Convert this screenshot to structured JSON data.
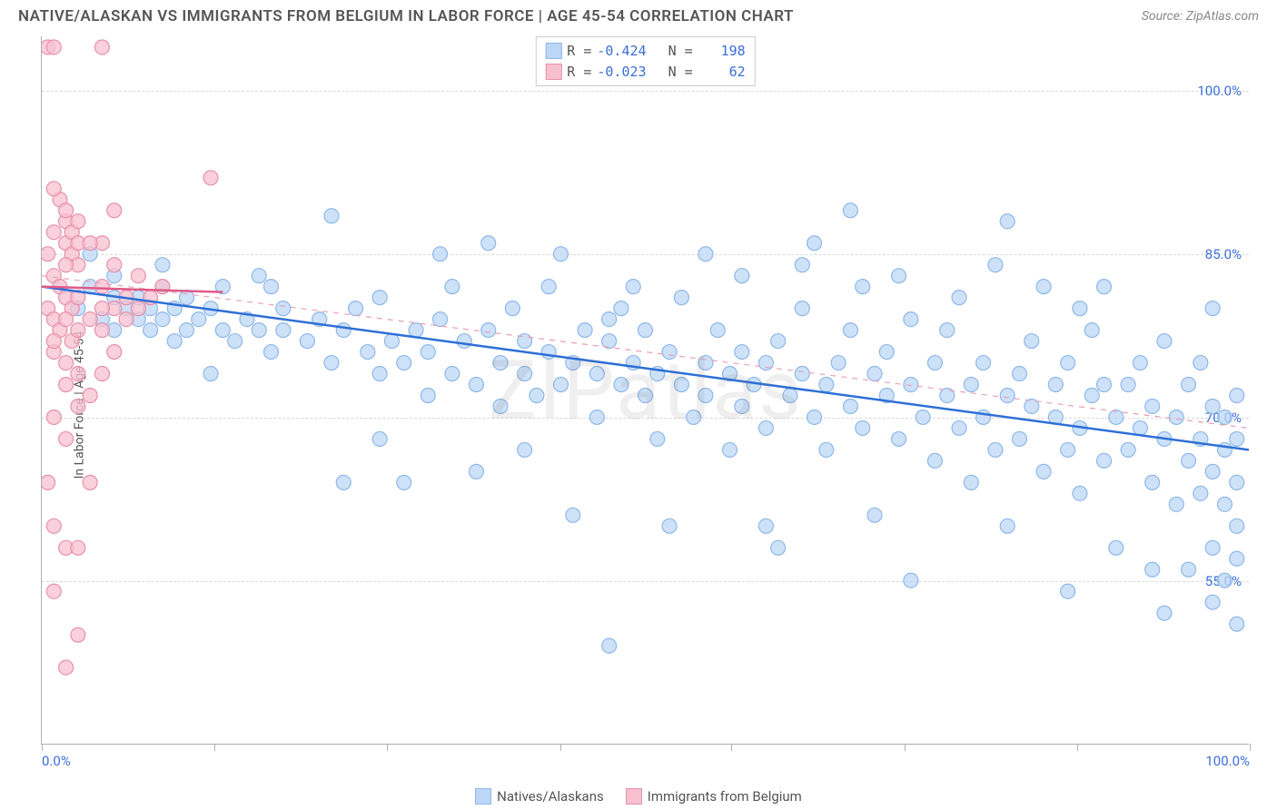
{
  "title": "NATIVE/ALASKAN VS IMMIGRANTS FROM BELGIUM IN LABOR FORCE | AGE 45-54 CORRELATION CHART",
  "source": "Source: ZipAtlas.com",
  "ylabel": "In Labor Force | Age 45-54",
  "watermark": "ZIPatlas",
  "chart": {
    "type": "scatter",
    "background_color": "#ffffff",
    "grid_color": "#d8d8d8",
    "axis_color": "#b0b0b0",
    "xlim": [
      0,
      100
    ],
    "ylim": [
      40,
      105
    ],
    "xticks": [
      0,
      14.3,
      28.6,
      42.9,
      57.1,
      71.4,
      85.7,
      100
    ],
    "xtick_labels_shown": {
      "0": "0.0%",
      "100": "100.0%"
    },
    "yticks": [
      55,
      70,
      85,
      100
    ],
    "ytick_labels": [
      "55.0%",
      "70.0%",
      "85.0%",
      "100.0%"
    ],
    "marker_radius": 8,
    "marker_stroke_width": 1.2,
    "trend_line_width_main": 2.5,
    "trend_line_width_dash": 1.2,
    "series": [
      {
        "name": "Natives/Alaskans",
        "R": "-0.424",
        "N": "198",
        "fill_color": "#bcd7f5",
        "stroke_color": "#8fb8e8",
        "fill_opacity": 0.75,
        "trend_solid": {
          "x1": 0,
          "y1": 82,
          "x2": 100,
          "y2": 67,
          "color": "#2e6fd6"
        },
        "trend_dash": {
          "x1": 0,
          "y1": 83,
          "x2": 100,
          "y2": 69,
          "color": "#e89fb5"
        },
        "points": [
          [
            3,
            80
          ],
          [
            4,
            82
          ],
          [
            5,
            79
          ],
          [
            6,
            81
          ],
          [
            6,
            78
          ],
          [
            7,
            80
          ],
          [
            8,
            79
          ],
          [
            8,
            81
          ],
          [
            9,
            78
          ],
          [
            9,
            80
          ],
          [
            10,
            84
          ],
          [
            10,
            79
          ],
          [
            11,
            80
          ],
          [
            11,
            77
          ],
          [
            12,
            78
          ],
          [
            12,
            81
          ],
          [
            13,
            79
          ],
          [
            14,
            80
          ],
          [
            15,
            78
          ],
          [
            15,
            82
          ],
          [
            16,
            77
          ],
          [
            17,
            79
          ],
          [
            18,
            78
          ],
          [
            18,
            83
          ],
          [
            19,
            76
          ],
          [
            20,
            78
          ],
          [
            20,
            80
          ],
          [
            22,
            77
          ],
          [
            23,
            79
          ],
          [
            24,
            75
          ],
          [
            25,
            78
          ],
          [
            25,
            64
          ],
          [
            26,
            80
          ],
          [
            27,
            76
          ],
          [
            28,
            74
          ],
          [
            28,
            81
          ],
          [
            29,
            77
          ],
          [
            30,
            75
          ],
          [
            30,
            64
          ],
          [
            31,
            78
          ],
          [
            32,
            76
          ],
          [
            32,
            72
          ],
          [
            33,
            79
          ],
          [
            34,
            74
          ],
          [
            34,
            82
          ],
          [
            35,
            77
          ],
          [
            36,
            73
          ],
          [
            36,
            65
          ],
          [
            37,
            78
          ],
          [
            38,
            75
          ],
          [
            38,
            71
          ],
          [
            39,
            80
          ],
          [
            40,
            74
          ],
          [
            40,
            77
          ],
          [
            41,
            72
          ],
          [
            42,
            76
          ],
          [
            42,
            82
          ],
          [
            43,
            73
          ],
          [
            44,
            75
          ],
          [
            44,
            61
          ],
          [
            45,
            78
          ],
          [
            46,
            74
          ],
          [
            46,
            70
          ],
          [
            47,
            77
          ],
          [
            47,
            49
          ],
          [
            48,
            73
          ],
          [
            48,
            80
          ],
          [
            49,
            75
          ],
          [
            50,
            72
          ],
          [
            50,
            78
          ],
          [
            51,
            74
          ],
          [
            51,
            68
          ],
          [
            52,
            76
          ],
          [
            53,
            73
          ],
          [
            53,
            81
          ],
          [
            54,
            70
          ],
          [
            55,
            75
          ],
          [
            55,
            72
          ],
          [
            56,
            78
          ],
          [
            57,
            74
          ],
          [
            57,
            67
          ],
          [
            58,
            76
          ],
          [
            58,
            71
          ],
          [
            59,
            73
          ],
          [
            60,
            75
          ],
          [
            60,
            69
          ],
          [
            61,
            77
          ],
          [
            61,
            58
          ],
          [
            62,
            72
          ],
          [
            63,
            74
          ],
          [
            63,
            80
          ],
          [
            64,
            70
          ],
          [
            64,
            86
          ],
          [
            65,
            73
          ],
          [
            65,
            67
          ],
          [
            66,
            75
          ],
          [
            67,
            71
          ],
          [
            67,
            78
          ],
          [
            68,
            69
          ],
          [
            68,
            82
          ],
          [
            69,
            74
          ],
          [
            69,
            61
          ],
          [
            70,
            72
          ],
          [
            70,
            76
          ],
          [
            71,
            68
          ],
          [
            71,
            83
          ],
          [
            72,
            73
          ],
          [
            72,
            55
          ],
          [
            73,
            70
          ],
          [
            74,
            75
          ],
          [
            74,
            66
          ],
          [
            75,
            72
          ],
          [
            75,
            78
          ],
          [
            76,
            69
          ],
          [
            76,
            81
          ],
          [
            77,
            73
          ],
          [
            77,
            64
          ],
          [
            78,
            70
          ],
          [
            78,
            75
          ],
          [
            79,
            67
          ],
          [
            79,
            84
          ],
          [
            80,
            72
          ],
          [
            80,
            60
          ],
          [
            81,
            74
          ],
          [
            81,
            68
          ],
          [
            82,
            71
          ],
          [
            82,
            77
          ],
          [
            83,
            65
          ],
          [
            83,
            82
          ],
          [
            84,
            70
          ],
          [
            84,
            73
          ],
          [
            85,
            67
          ],
          [
            85,
            75
          ],
          [
            86,
            69
          ],
          [
            86,
            63
          ],
          [
            87,
            72
          ],
          [
            87,
            78
          ],
          [
            88,
            66
          ],
          [
            88,
            82
          ],
          [
            89,
            70
          ],
          [
            89,
            58
          ],
          [
            90,
            73
          ],
          [
            90,
            67
          ],
          [
            91,
            69
          ],
          [
            91,
            75
          ],
          [
            92,
            64
          ],
          [
            92,
            71
          ],
          [
            93,
            68
          ],
          [
            93,
            77
          ],
          [
            93,
            52
          ],
          [
            94,
            62
          ],
          [
            94,
            70
          ],
          [
            95,
            66
          ],
          [
            95,
            73
          ],
          [
            95,
            56
          ],
          [
            96,
            68
          ],
          [
            96,
            63
          ],
          [
            96,
            75
          ],
          [
            97,
            65
          ],
          [
            97,
            71
          ],
          [
            97,
            58
          ],
          [
            97,
            80
          ],
          [
            98,
            67
          ],
          [
            98,
            62
          ],
          [
            98,
            70
          ],
          [
            98,
            55
          ],
          [
            99,
            64
          ],
          [
            99,
            68
          ],
          [
            99,
            60
          ],
          [
            99,
            72
          ],
          [
            99,
            51
          ],
          [
            24,
            88.5
          ],
          [
            37,
            86
          ],
          [
            60,
            60
          ],
          [
            85,
            54
          ],
          [
            92,
            56
          ],
          [
            80,
            88
          ],
          [
            55,
            85
          ],
          [
            43,
            85
          ],
          [
            67,
            89
          ],
          [
            33,
            85
          ],
          [
            10,
            82
          ],
          [
            6,
            83
          ],
          [
            4,
            85
          ],
          [
            97,
            53
          ],
          [
            99,
            57
          ],
          [
            47,
            79
          ],
          [
            52,
            60
          ],
          [
            58,
            83
          ],
          [
            40,
            67
          ],
          [
            88,
            73
          ],
          [
            63,
            84
          ],
          [
            28,
            68
          ],
          [
            72,
            79
          ],
          [
            49,
            82
          ],
          [
            19,
            82
          ],
          [
            86,
            80
          ],
          [
            14,
            74
          ]
        ]
      },
      {
        "name": "Immigrants from Belgium",
        "R": "-0.023",
        "N": "62",
        "fill_color": "#f7c0d0",
        "stroke_color": "#e890ac",
        "fill_opacity": 0.75,
        "trend_solid": {
          "x1": 0,
          "y1": 82,
          "x2": 15,
          "y2": 81.5,
          "color": "#e05a88"
        },
        "points": [
          [
            0.5,
            104
          ],
          [
            1,
            104
          ],
          [
            1.5,
            90
          ],
          [
            2,
            88
          ],
          [
            2,
            86
          ],
          [
            2.5,
            87
          ],
          [
            2.5,
            85
          ],
          [
            3,
            86
          ],
          [
            3,
            84
          ],
          [
            1,
            83
          ],
          [
            1.5,
            82
          ],
          [
            2,
            81
          ],
          [
            2.5,
            80
          ],
          [
            3,
            81
          ],
          [
            0.5,
            80
          ],
          [
            1,
            79
          ],
          [
            1.5,
            78
          ],
          [
            2,
            79
          ],
          [
            2.5,
            77
          ],
          [
            3,
            78
          ],
          [
            1,
            76
          ],
          [
            2,
            75
          ],
          [
            3,
            74
          ],
          [
            1,
            70
          ],
          [
            2,
            68
          ],
          [
            0.5,
            64
          ],
          [
            1,
            60
          ],
          [
            2,
            58
          ],
          [
            1,
            54
          ],
          [
            3,
            50
          ],
          [
            2,
            47
          ],
          [
            5,
            104
          ],
          [
            6,
            89
          ],
          [
            5,
            86
          ],
          [
            6,
            84
          ],
          [
            5,
            82
          ],
          [
            6,
            80
          ],
          [
            7,
            81
          ],
          [
            8,
            83
          ],
          [
            5,
            78
          ],
          [
            6,
            76
          ],
          [
            7,
            79
          ],
          [
            8,
            80
          ],
          [
            9,
            81
          ],
          [
            10,
            82
          ],
          [
            5,
            74
          ],
          [
            4,
            72
          ],
          [
            3,
            71
          ],
          [
            2,
            73
          ],
          [
            1,
            77
          ],
          [
            0.5,
            85
          ],
          [
            1,
            87
          ],
          [
            2,
            89
          ],
          [
            3,
            88
          ],
          [
            4,
            86
          ],
          [
            1,
            91
          ],
          [
            2,
            84
          ],
          [
            4,
            79
          ],
          [
            5,
            80
          ],
          [
            14,
            92
          ],
          [
            4,
            64
          ],
          [
            3,
            58
          ]
        ]
      }
    ]
  },
  "legend_bottom": [
    {
      "label": "Natives/Alaskans",
      "fill": "#bcd7f5",
      "stroke": "#8fb8e8"
    },
    {
      "label": "Immigrants from Belgium",
      "fill": "#f7c0d0",
      "stroke": "#e890ac"
    }
  ]
}
